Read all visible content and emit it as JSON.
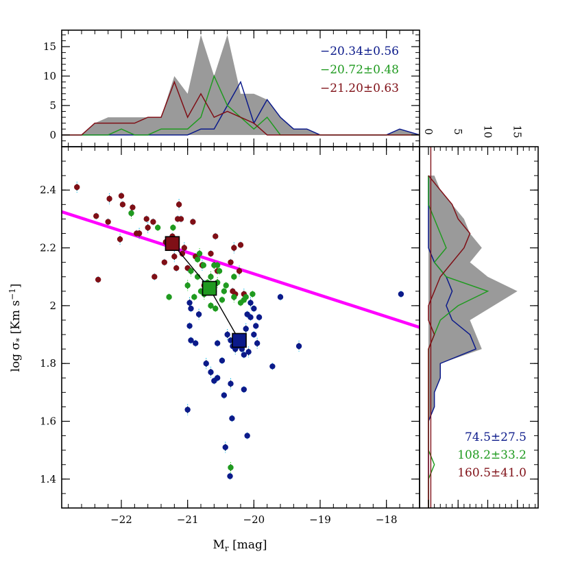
{
  "colors": {
    "blue": "#0b1a8a",
    "green": "#1f9a1f",
    "red": "#7f0f16",
    "line": "#ff00ff",
    "hist_fill": "#9a9a9a",
    "err_cyan": "#00b7e8",
    "err_green": "#33dd33"
  },
  "chart_data": [
    {
      "name": "scatter",
      "type": "scatter",
      "xlabel_main": "M",
      "xlabel_sub": "r",
      "xlabel_unit": "[mag]",
      "ylabel": "log σ* [Km s⁻¹]",
      "ylabel_parts": {
        "pre": "log σ",
        "sub": "*",
        "post": " [Km s",
        "sup": "−1",
        "end": "]"
      },
      "xlim": [
        -22.9,
        -17.5
      ],
      "ylim": [
        1.3,
        2.55
      ],
      "xticks": [
        -22,
        -21,
        -20,
        -19,
        -18
      ],
      "xtick_labels": [
        "−22",
        "−21",
        "−20",
        "−19",
        "−18"
      ],
      "yticks": [
        1.4,
        1.6,
        1.8,
        2,
        2.2,
        2.4
      ],
      "ytick_labels": [
        "1.4",
        "1.6",
        "1.8",
        "2",
        "2.2",
        "2.4"
      ],
      "fit_line": {
        "x": [
          -22.9,
          -17.5
        ],
        "y": [
          2.325,
          1.925
        ]
      },
      "medians": {
        "x": [
          -21.23,
          -20.67,
          -20.22
        ],
        "y": [
          2.215,
          2.06,
          1.88
        ],
        "colors": [
          "red",
          "green",
          "blue"
        ]
      },
      "series": [
        {
          "color": "red",
          "points": [
            [
              -22.67,
              2.41
            ],
            [
              -22.38,
              2.31
            ],
            [
              -22.2,
              2.29
            ],
            [
              -22.18,
              2.37
            ],
            [
              -22.0,
              2.38
            ],
            [
              -21.98,
              2.35
            ],
            [
              -22.02,
              2.23
            ],
            [
              -21.83,
              2.34
            ],
            [
              -21.77,
              2.25
            ],
            [
              -21.73,
              2.25
            ],
            [
              -21.62,
              2.3
            ],
            [
              -21.52,
              2.29
            ],
            [
              -21.33,
              2.22
            ],
            [
              -21.35,
              2.15
            ],
            [
              -21.23,
              2.24
            ],
            [
              -21.13,
              2.35
            ],
            [
              -21.1,
              2.3
            ],
            [
              -21.15,
              2.3
            ],
            [
              -21.2,
              2.17
            ],
            [
              -21.17,
              2.13
            ],
            [
              -21.08,
              2.18
            ],
            [
              -21.05,
              2.2
            ],
            [
              -20.92,
              2.29
            ],
            [
              -20.88,
              2.17
            ],
            [
              -20.78,
              2.14
            ],
            [
              -20.65,
              2.18
            ],
            [
              -20.58,
              2.24
            ],
            [
              -20.3,
              2.2
            ],
            [
              -20.2,
              2.21
            ],
            [
              -20.35,
              2.15
            ],
            [
              -20.22,
              2.12
            ],
            [
              -20.32,
              2.05
            ],
            [
              -20.28,
              2.04
            ],
            [
              -20.15,
              2.04
            ],
            [
              -21.5,
              2.1
            ],
            [
              -22.35,
              2.09
            ],
            [
              -21.6,
              2.27
            ],
            [
              -21.0,
              2.13
            ],
            [
              -20.55,
              2.12
            ],
            [
              -20.75,
              2.07
            ]
          ]
        },
        {
          "color": "green",
          "points": [
            [
              -21.85,
              2.32
            ],
            [
              -21.45,
              2.27
            ],
            [
              -21.22,
              2.27
            ],
            [
              -20.82,
              2.18
            ],
            [
              -20.85,
              2.16
            ],
            [
              -20.76,
              2.14
            ],
            [
              -20.6,
              2.14
            ],
            [
              -20.55,
              2.14
            ],
            [
              -20.52,
              2.12
            ],
            [
              -20.65,
              2.1
            ],
            [
              -20.7,
              2.08
            ],
            [
              -20.8,
              2.05
            ],
            [
              -20.75,
              2.04
            ],
            [
              -20.9,
              2.03
            ],
            [
              -21.28,
              2.03
            ],
            [
              -21.0,
              2.07
            ],
            [
              -20.65,
              2.0
            ],
            [
              -20.58,
              1.99
            ],
            [
              -20.55,
              2.08
            ],
            [
              -20.42,
              2.07
            ],
            [
              -20.3,
              2.1
            ],
            [
              -20.12,
              2.03
            ],
            [
              -20.15,
              2.02
            ],
            [
              -20.02,
              2.04
            ],
            [
              -20.3,
              2.03
            ],
            [
              -20.2,
              2.01
            ],
            [
              -20.45,
              2.05
            ],
            [
              -20.35,
              1.44
            ],
            [
              -20.6,
              2.05
            ],
            [
              -20.85,
              2.1
            ],
            [
              -20.95,
              2.12
            ],
            [
              -20.48,
              2.02
            ]
          ]
        },
        {
          "color": "blue",
          "points": [
            [
              -20.97,
              2.01
            ],
            [
              -20.95,
              1.99
            ],
            [
              -20.97,
              1.93
            ],
            [
              -20.83,
              1.97
            ],
            [
              -20.88,
              1.87
            ],
            [
              -20.95,
              1.88
            ],
            [
              -20.72,
              1.8
            ],
            [
              -20.6,
              1.74
            ],
            [
              -20.55,
              1.87
            ],
            [
              -20.4,
              1.9
            ],
            [
              -20.35,
              1.88
            ],
            [
              -20.32,
              1.86
            ],
            [
              -20.28,
              1.85
            ],
            [
              -20.18,
              1.85
            ],
            [
              -20.15,
              1.83
            ],
            [
              -20.08,
              1.84
            ],
            [
              -20.05,
              1.96
            ],
            [
              -20.0,
              1.99
            ],
            [
              -20.05,
              2.01
            ],
            [
              -20.1,
              1.97
            ],
            [
              -20.0,
              1.9
            ],
            [
              -19.95,
              1.87
            ],
            [
              -19.97,
              1.93
            ],
            [
              -19.92,
              1.96
            ],
            [
              -20.12,
              1.92
            ],
            [
              -19.6,
              2.03
            ],
            [
              -19.72,
              1.79
            ],
            [
              -19.32,
              1.86
            ],
            [
              -17.78,
              2.04
            ],
            [
              -20.48,
              1.81
            ],
            [
              -20.65,
              1.77
            ],
            [
              -20.55,
              1.75
            ],
            [
              -20.45,
              1.69
            ],
            [
              -20.35,
              1.73
            ],
            [
              -20.15,
              1.71
            ],
            [
              -20.33,
              1.61
            ],
            [
              -20.43,
              1.51
            ],
            [
              -20.36,
              1.41
            ],
            [
              -20.1,
              1.55
            ],
            [
              -21.0,
              1.64
            ],
            [
              -20.25,
              1.86
            ],
            [
              -20.2,
              1.88
            ]
          ]
        }
      ]
    },
    {
      "name": "top-histogram",
      "type": "area",
      "yticks": [
        0,
        5,
        10,
        15
      ],
      "ytick_labels": [
        "0",
        "5",
        "10",
        "15"
      ],
      "ylim": [
        -2,
        17.8
      ],
      "bin_x": [
        -22.9,
        -22.6,
        -22.4,
        -22.2,
        -22.0,
        -21.8,
        -21.6,
        -21.4,
        -21.2,
        -21.0,
        -20.8,
        -20.6,
        -20.4,
        -20.2,
        -20.0,
        -19.8,
        -19.6,
        -19.4,
        -19.2,
        -19.0,
        -18.8,
        -18.6,
        -18.4,
        -18.2,
        -18.0,
        -17.8,
        -17.5
      ],
      "total": [
        0,
        0,
        2,
        3,
        3,
        3,
        3,
        3,
        10,
        7,
        17,
        10,
        17,
        7,
        7,
        6,
        3,
        1,
        1,
        0,
        0,
        0,
        0,
        0,
        0,
        1,
        0
      ],
      "series": [
        {
          "color": "blue",
          "label": "−20.34±0.56",
          "values": [
            0,
            0,
            0,
            0,
            0,
            0,
            0,
            0,
            0,
            0,
            1,
            1,
            5,
            9,
            2,
            6,
            3,
            1,
            1,
            0,
            0,
            0,
            0,
            0,
            0,
            1,
            0
          ]
        },
        {
          "color": "green",
          "label": "−20.72±0.48",
          "values": [
            0,
            0,
            0,
            0,
            1,
            0,
            0,
            1,
            1,
            1,
            3,
            10,
            5,
            3,
            1,
            3,
            0,
            0,
            0,
            0,
            0,
            0,
            0,
            0,
            0,
            0,
            0
          ]
        },
        {
          "color": "red",
          "label": "−21.20±0.63",
          "values": [
            0,
            0,
            2,
            2,
            2,
            2,
            3,
            3,
            9,
            3,
            7,
            3,
            4,
            3,
            2,
            0,
            0,
            0,
            0,
            0,
            0,
            0,
            0,
            0,
            0,
            0,
            0
          ]
        }
      ]
    },
    {
      "name": "right-histogram",
      "type": "area",
      "xticks": [
        0,
        5,
        10,
        15
      ],
      "xtick_labels": [
        "0",
        "5",
        "10",
        "15"
      ],
      "xlim": [
        -1.5,
        18.5
      ],
      "bin_y": [
        2.45,
        2.4,
        2.35,
        2.3,
        2.25,
        2.2,
        2.15,
        2.1,
        2.05,
        2.0,
        1.95,
        1.9,
        1.85,
        1.8,
        1.75,
        1.7,
        1.65,
        1.6,
        1.55,
        1.5,
        1.45,
        1.4,
        1.35,
        1.3
      ],
      "total": [
        1,
        2,
        4,
        6,
        7,
        9,
        7,
        10,
        15,
        11,
        7,
        8,
        9,
        2,
        2,
        1,
        1,
        0,
        0,
        0,
        0,
        0,
        0,
        0
      ],
      "series": [
        {
          "color": "blue",
          "label": "74.5±27.5",
          "values": [
            0,
            0,
            0,
            0,
            0,
            0,
            1,
            3,
            4,
            3,
            4,
            7,
            8,
            2,
            2,
            1,
            1,
            0,
            0,
            0,
            0,
            0,
            0,
            0
          ]
        },
        {
          "color": "green",
          "label": "108.2±33.2",
          "values": [
            0,
            0,
            0,
            1,
            2,
            3,
            1,
            3,
            10,
            5,
            2,
            1,
            0,
            0,
            0,
            0,
            0,
            0,
            0,
            0,
            1,
            0,
            0,
            0
          ]
        },
        {
          "color": "red",
          "label": "160.5±41.0",
          "values": [
            0,
            2,
            4,
            5,
            7,
            6,
            4,
            2,
            1,
            0,
            0,
            1,
            0,
            0,
            0,
            0,
            0,
            0,
            0,
            0,
            0,
            0,
            0,
            0
          ]
        }
      ]
    }
  ]
}
